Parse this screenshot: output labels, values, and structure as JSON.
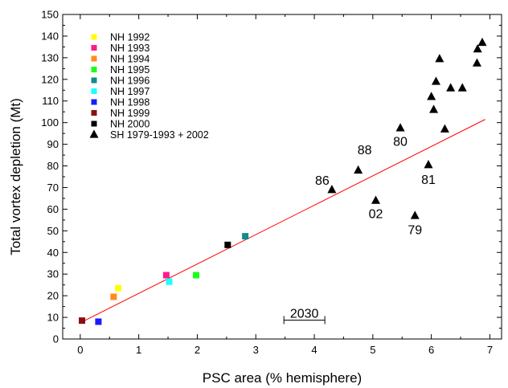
{
  "chart_data": {
    "type": "scatter",
    "xlabel": "PSC area (% hemisphere)",
    "ylabel": "Total vortex depletion (Mt)",
    "xlim": [
      -0.3,
      7.2
    ],
    "ylim": [
      0,
      150
    ],
    "xticks": [
      "0",
      "1",
      "2",
      "3",
      "4",
      "5",
      "6",
      "7"
    ],
    "yticks": [
      "0",
      "10",
      "20",
      "30",
      "40",
      "50",
      "60",
      "70",
      "80",
      "90",
      "100",
      "110",
      "120",
      "130",
      "140",
      "150"
    ],
    "grid": false,
    "legend_position": "top-left",
    "series": [
      {
        "name": "NH 1992",
        "marker": "square",
        "color": "#ffff00",
        "points": [
          [
            0.65,
            23.5
          ]
        ]
      },
      {
        "name": "NH 1993",
        "marker": "square",
        "color": "#ff1a8c",
        "points": [
          [
            1.47,
            29.5
          ]
        ]
      },
      {
        "name": "NH 1994",
        "marker": "square",
        "color": "#ff8c1a",
        "points": [
          [
            0.57,
            19.5
          ]
        ]
      },
      {
        "name": "NH 1995",
        "marker": "square",
        "color": "#1aff1a",
        "points": [
          [
            1.98,
            29.5
          ]
        ]
      },
      {
        "name": "NH 1996",
        "marker": "square",
        "color": "#0f8c8c",
        "points": [
          [
            2.82,
            47.5
          ]
        ]
      },
      {
        "name": "NH 1997",
        "marker": "square",
        "color": "#1affff",
        "points": [
          [
            1.52,
            26.5
          ]
        ]
      },
      {
        "name": "NH 1998",
        "marker": "square",
        "color": "#1a1aff",
        "points": [
          [
            0.31,
            8
          ]
        ]
      },
      {
        "name": "NH 1999",
        "marker": "square",
        "color": "#8c0f0f",
        "points": [
          [
            0.03,
            8.5
          ]
        ]
      },
      {
        "name": "NH 2000",
        "marker": "square",
        "color": "#000000",
        "points": [
          [
            2.52,
            43.5
          ]
        ]
      },
      {
        "name": "SH 1979-1993 + 2002",
        "marker": "triangle",
        "color": "#000000",
        "points": [
          [
            4.3,
            69
          ],
          [
            4.75,
            78
          ],
          [
            5.05,
            64
          ],
          [
            5.47,
            97.5
          ],
          [
            5.72,
            57
          ],
          [
            5.95,
            80.5
          ],
          [
            6.0,
            112
          ],
          [
            6.04,
            106
          ],
          [
            6.08,
            119
          ],
          [
            6.14,
            129.5
          ],
          [
            6.23,
            97
          ],
          [
            6.33,
            116
          ],
          [
            6.53,
            116
          ],
          [
            6.78,
            127.5
          ],
          [
            6.79,
            134
          ],
          [
            6.87,
            137
          ]
        ]
      }
    ],
    "fit_line": {
      "color": "#ff0000",
      "x": [
        0,
        6.92
      ],
      "y": [
        7.5,
        101.5
      ]
    },
    "annotations": [
      {
        "text": "86",
        "x": 4.3,
        "y": 69
      },
      {
        "text": "88",
        "x": 4.75,
        "y": 78
      },
      {
        "text": "02",
        "x": 5.05,
        "y": 64
      },
      {
        "text": "80",
        "x": 5.47,
        "y": 97.5
      },
      {
        "text": "81",
        "x": 5.95,
        "y": 80.5
      },
      {
        "text": "79",
        "x": 5.72,
        "y": 57
      }
    ],
    "range_marker": {
      "label": "2030",
      "x_start": 3.48,
      "x_end": 4.18,
      "y": 8
    }
  }
}
